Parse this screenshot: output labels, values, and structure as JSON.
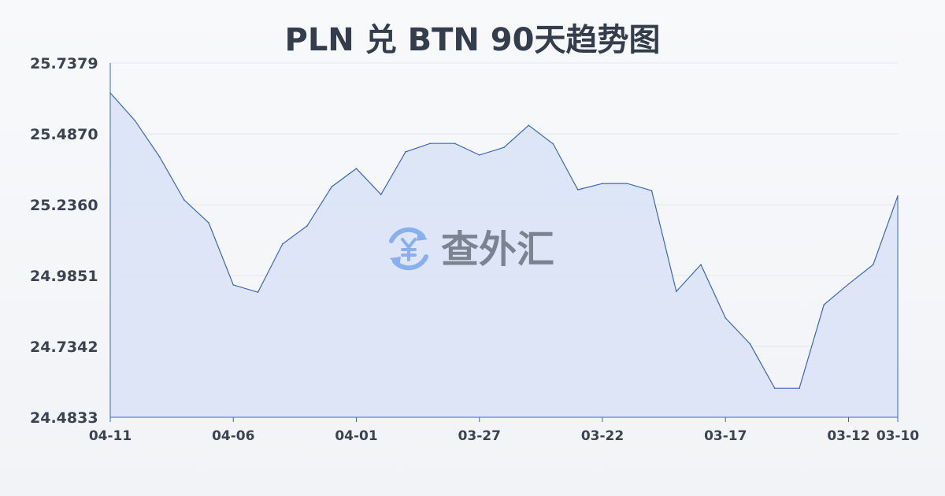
{
  "chart_data": {
    "type": "area",
    "title": "PLN 兑 BTN 90天趋势图",
    "xlabel": "",
    "ylabel": "",
    "ylim": [
      24.4833,
      25.7379
    ],
    "yticks": [
      "25.7379",
      "25.4870",
      "25.2360",
      "24.9851",
      "24.7342",
      "24.4833"
    ],
    "xticks": [
      "04-11",
      "04-06",
      "04-01",
      "03-27",
      "03-22",
      "03-17",
      "03-12",
      "03-10"
    ],
    "grid": true,
    "line_color": "#3a66c9",
    "fill_color": "#dae3f5",
    "x": [
      "04-11",
      "04-10",
      "04-09",
      "04-08",
      "04-07",
      "04-06",
      "04-05",
      "04-04",
      "04-03",
      "04-02",
      "04-01",
      "03-31",
      "03-30",
      "03-29",
      "03-28",
      "03-27",
      "03-26",
      "03-25",
      "03-24",
      "03-23",
      "03-22",
      "03-21",
      "03-20",
      "03-19",
      "03-18",
      "03-17",
      "03-16",
      "03-15",
      "03-14",
      "03-13",
      "03-12",
      "03-11",
      "03-10"
    ],
    "values": [
      25.632,
      25.534,
      25.406,
      25.253,
      25.172,
      24.952,
      24.926,
      25.097,
      25.161,
      25.3,
      25.364,
      25.272,
      25.423,
      25.453,
      25.453,
      25.412,
      25.439,
      25.517,
      25.451,
      25.289,
      25.311,
      25.311,
      25.286,
      24.929,
      25.024,
      24.835,
      24.743,
      24.586,
      24.586,
      24.882,
      24.955,
      25.024,
      25.267
    ]
  },
  "watermark": {
    "text": "查外汇",
    "icon": "yen-exchange-icon"
  }
}
